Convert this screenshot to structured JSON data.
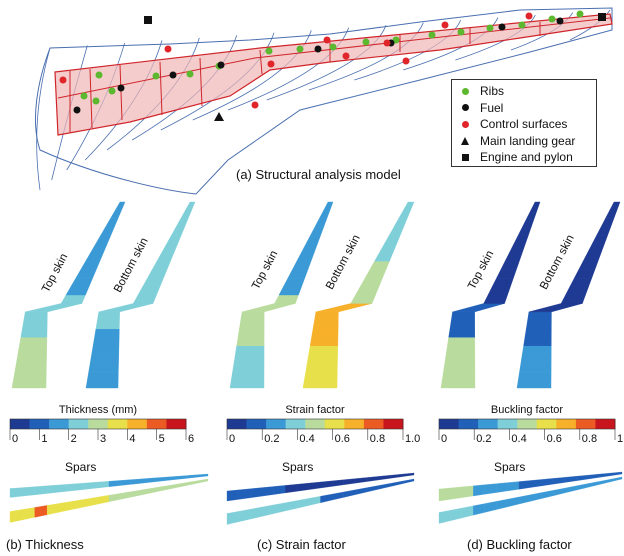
{
  "panel_a": {
    "caption": "(a) Structural analysis model",
    "legend": [
      {
        "label": "Ribs",
        "symbol": "circle",
        "color": "#5cb82e"
      },
      {
        "label": "Fuel",
        "symbol": "circle",
        "color": "#111111"
      },
      {
        "label": "Control surfaces",
        "symbol": "circle",
        "color": "#e0262a"
      },
      {
        "label": "Main landing gear",
        "symbol": "triangle",
        "color": "#111111"
      },
      {
        "label": "Engine and pylon",
        "symbol": "square",
        "color": "#111111"
      }
    ]
  },
  "skins": {
    "top_label": "Top skin",
    "bottom_label": "Bottom skin"
  },
  "colorbars": [
    {
      "title": "Thickness (mm)",
      "ticks": [
        "0",
        "1",
        "2",
        "3",
        "4",
        "5",
        "6"
      ]
    },
    {
      "title": "Strain factor",
      "ticks": [
        "0",
        "0.2",
        "0.4",
        "0.6",
        "0.8",
        "1.0"
      ]
    },
    {
      "title": "Buckling factor",
      "ticks": [
        "0",
        "0.2",
        "0.4",
        "0.6",
        "0.8",
        "1.0"
      ]
    }
  ],
  "spars_label": "Spars",
  "captions": [
    "(b) Thickness",
    "(c) Strain factor",
    "(d) Buckling factor"
  ],
  "colormap": [
    "#1f3a93",
    "#2160b8",
    "#3b9ad6",
    "#7fcfd8",
    "#b9dc9e",
    "#e8e04a",
    "#f7b02a",
    "#ec5b23",
    "#c8141c"
  ]
}
